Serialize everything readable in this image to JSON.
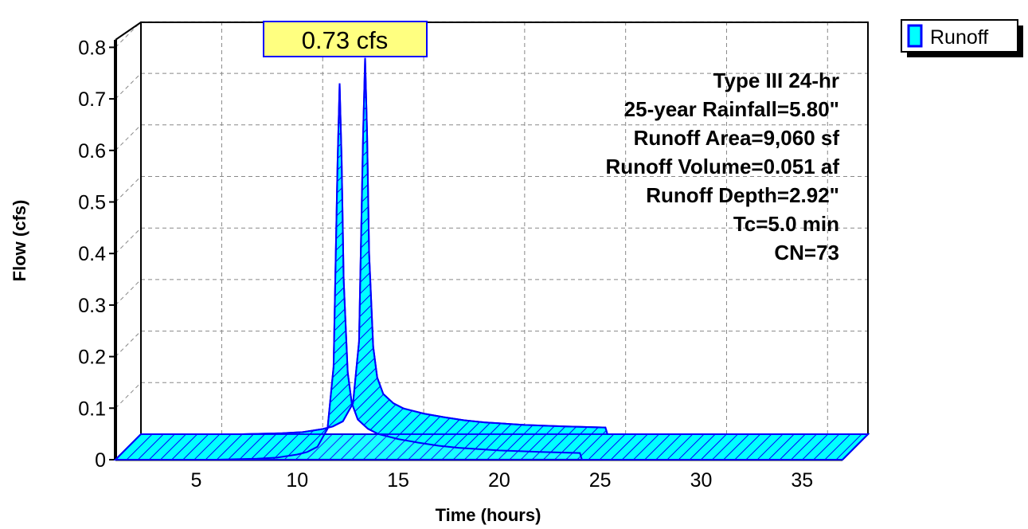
{
  "chart_data": {
    "type": "area",
    "xlabel": "Time  (hours)",
    "ylabel": "Flow  (cfs)",
    "xlim": [
      1,
      37
    ],
    "ylim": [
      0,
      0.83
    ],
    "x_ticks": [
      5,
      10,
      15,
      20,
      25,
      30,
      35
    ],
    "x_tick_labels": [
      "5",
      "10",
      "15",
      "20",
      "25",
      "30",
      "35"
    ],
    "y_ticks": [
      0,
      0.1,
      0.2,
      0.3,
      0.4,
      0.5,
      0.6,
      0.7,
      0.8
    ],
    "y_tick_labels": [
      "0",
      "0.1",
      "0.2",
      "0.3",
      "0.4",
      "0.5",
      "0.6",
      "0.7",
      "0.8"
    ],
    "grid": true,
    "legend_position": "top-right",
    "series": [
      {
        "name": "Runoff",
        "color": "#00ffff",
        "outline_color": "#0000ff",
        "x": [
          1,
          6,
          8,
          9,
          10,
          10.5,
          11,
          11.5,
          11.8,
          12,
          12.1,
          12.2,
          12.3,
          12.5,
          12.7,
          13,
          13.5,
          14,
          15,
          16,
          17,
          18,
          20,
          22,
          24,
          24.1,
          30,
          37
        ],
        "y": [
          0,
          0,
          0.002,
          0.004,
          0.01,
          0.015,
          0.025,
          0.06,
          0.18,
          0.58,
          0.73,
          0.58,
          0.35,
          0.17,
          0.11,
          0.078,
          0.06,
          0.05,
          0.04,
          0.033,
          0.027,
          0.023,
          0.018,
          0.015,
          0.013,
          0,
          0,
          0
        ]
      }
    ],
    "peak_label": "0.73 cfs",
    "annotations": [
      "Type III 24-hr",
      "25-year Rainfall=5.80\"",
      "Runoff Area=9,060 sf",
      "Runoff Volume=0.051 af",
      "Runoff Depth=2.92\"",
      "Tc=5.0 min",
      "CN=73"
    ]
  },
  "legend": {
    "label": "Runoff"
  }
}
